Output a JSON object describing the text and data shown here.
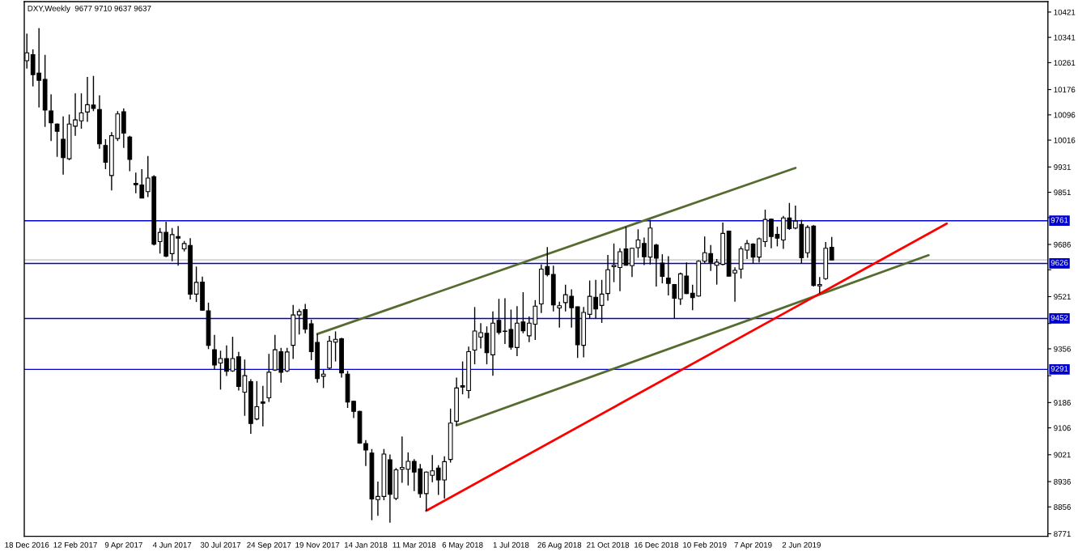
{
  "chart_data": {
    "type": "candlestick",
    "title": "DXY,Weekly  9677 9710 9637 9637",
    "x": [
      "2016-12-18",
      "2016-12-25",
      "2017-01-01",
      "2017-01-08",
      "2017-01-15",
      "2017-01-22",
      "2017-01-29",
      "2017-02-05",
      "2017-02-12",
      "2017-02-19",
      "2017-02-26",
      "2017-03-05",
      "2017-03-12",
      "2017-03-19",
      "2017-03-26",
      "2017-04-02",
      "2017-04-09",
      "2017-04-16",
      "2017-04-23",
      "2017-04-30",
      "2017-05-07",
      "2017-05-14",
      "2017-05-21",
      "2017-05-28",
      "2017-06-04",
      "2017-06-11",
      "2017-06-18",
      "2017-06-25",
      "2017-07-02",
      "2017-07-09",
      "2017-07-16",
      "2017-07-23",
      "2017-07-30",
      "2017-08-06",
      "2017-08-13",
      "2017-08-20",
      "2017-08-27",
      "2017-09-03",
      "2017-09-10",
      "2017-09-17",
      "2017-09-24",
      "2017-10-01",
      "2017-10-08",
      "2017-10-15",
      "2017-10-22",
      "2017-10-29",
      "2017-11-05",
      "2017-11-12",
      "2017-11-19",
      "2017-11-26",
      "2017-12-03",
      "2017-12-10",
      "2017-12-17",
      "2017-12-24",
      "2017-12-31",
      "2018-01-07",
      "2018-01-14",
      "2018-01-21",
      "2018-01-28",
      "2018-02-04",
      "2018-02-11",
      "2018-02-18",
      "2018-02-25",
      "2018-03-04",
      "2018-03-11",
      "2018-03-18",
      "2018-03-25",
      "2018-04-01",
      "2018-04-08",
      "2018-04-15",
      "2018-04-22",
      "2018-04-29",
      "2018-05-06",
      "2018-05-13",
      "2018-05-20",
      "2018-05-27",
      "2018-06-03",
      "2018-06-10",
      "2018-06-17",
      "2018-06-24",
      "2018-07-01",
      "2018-07-08",
      "2018-07-15",
      "2018-07-22",
      "2018-07-29",
      "2018-08-05",
      "2018-08-12",
      "2018-08-19",
      "2018-08-26",
      "2018-09-02",
      "2018-09-09",
      "2018-09-16",
      "2018-09-23",
      "2018-09-30",
      "2018-10-07",
      "2018-10-14",
      "2018-10-21",
      "2018-10-28",
      "2018-11-04",
      "2018-11-11",
      "2018-11-18",
      "2018-11-25",
      "2018-12-02",
      "2018-12-09",
      "2018-12-16",
      "2018-12-23",
      "2018-12-30",
      "2019-01-06",
      "2019-01-13",
      "2019-01-20",
      "2019-01-27",
      "2019-02-03",
      "2019-02-10",
      "2019-02-17",
      "2019-02-24",
      "2019-03-03",
      "2019-03-10",
      "2019-03-17",
      "2019-03-24",
      "2019-03-31",
      "2019-04-07",
      "2019-04-14",
      "2019-04-21",
      "2019-04-28",
      "2019-05-05",
      "2019-05-12",
      "2019-05-19",
      "2019-05-26",
      "2019-06-02",
      "2019-06-09",
      "2019-06-16",
      "2019-06-23",
      "2019-06-30",
      "2019-07-07"
    ],
    "ohlc": [
      [
        10267,
        10353,
        10242,
        10292
      ],
      [
        10286,
        10303,
        10186,
        10223
      ],
      [
        10228,
        10370,
        10119,
        10205
      ],
      [
        10208,
        10286,
        10058,
        10111
      ],
      [
        10108,
        10161,
        10013,
        10071
      ],
      [
        10067,
        10069,
        9963,
        10044
      ],
      [
        10019,
        10091,
        9907,
        9961
      ],
      [
        9957,
        10097,
        9952,
        10067
      ],
      [
        10060,
        10164,
        10030,
        10080
      ],
      [
        10077,
        10164,
        10052,
        10102
      ],
      [
        10105,
        10216,
        10074,
        10128
      ],
      [
        10127,
        10219,
        10108,
        10116
      ],
      [
        10113,
        10158,
        9989,
        10004
      ],
      [
        9999,
        10019,
        9924,
        9946
      ],
      [
        9904,
        10041,
        9857,
        10030
      ],
      [
        10021,
        10108,
        10013,
        10099
      ],
      [
        10106,
        10116,
        9991,
        10038
      ],
      [
        10026,
        10030,
        9918,
        9955
      ],
      [
        9879,
        9913,
        9848,
        9875
      ],
      [
        9874,
        9924,
        9833,
        9833
      ],
      [
        9853,
        9966,
        9836,
        9896
      ],
      [
        9900,
        9905,
        9683,
        9687
      ],
      [
        9695,
        9738,
        9657,
        9724
      ],
      [
        9724,
        9758,
        9646,
        9649
      ],
      [
        9657,
        9738,
        9633,
        9717
      ],
      [
        9711,
        9744,
        9619,
        9706
      ],
      [
        9672,
        9697,
        9664,
        9689
      ],
      [
        9683,
        9706,
        9512,
        9529
      ],
      [
        9529,
        9616,
        9504,
        9566
      ],
      [
        9567,
        9584,
        9476,
        9478
      ],
      [
        9476,
        9502,
        9355,
        9367
      ],
      [
        9353,
        9400,
        9289,
        9305
      ],
      [
        9311,
        9350,
        9227,
        9325
      ],
      [
        9325,
        9367,
        9270,
        9285
      ],
      [
        9286,
        9394,
        9283,
        9325
      ],
      [
        9331,
        9346,
        9224,
        9237
      ],
      [
        9219,
        9322,
        9144,
        9271
      ],
      [
        9252,
        9260,
        9087,
        9120
      ],
      [
        9134,
        9254,
        9130,
        9173
      ],
      [
        9188,
        9239,
        9111,
        9184
      ],
      [
        9201,
        9340,
        9188,
        9282
      ],
      [
        9289,
        9400,
        9286,
        9353
      ],
      [
        9347,
        9359,
        9249,
        9282
      ],
      [
        9286,
        9359,
        9282,
        9346
      ],
      [
        9367,
        9495,
        9324,
        9463
      ],
      [
        9463,
        9482,
        9401,
        9474
      ],
      [
        9480,
        9498,
        9405,
        9418
      ],
      [
        9435,
        9448,
        9320,
        9347
      ],
      [
        9376,
        9403,
        9249,
        9262
      ],
      [
        9269,
        9290,
        9232,
        9276
      ],
      [
        9295,
        9397,
        9289,
        9380
      ],
      [
        9377,
        9411,
        9316,
        9386
      ],
      [
        9388,
        9391,
        9265,
        9280
      ],
      [
        9276,
        9286,
        9169,
        9188
      ],
      [
        9190,
        9192,
        9137,
        9158
      ],
      [
        9158,
        9160,
        9056,
        9058
      ],
      [
        9056,
        9067,
        8985,
        9036
      ],
      [
        9026,
        9039,
        8814,
        8881
      ],
      [
        8879,
        8936,
        8828,
        8889
      ],
      [
        8889,
        9039,
        8877,
        9023
      ],
      [
        9005,
        9022,
        8806,
        8896
      ],
      [
        8883,
        8979,
        8877,
        8973
      ],
      [
        8975,
        9079,
        8932,
        8981
      ],
      [
        8975,
        9028,
        8924,
        9000
      ],
      [
        9000,
        9007,
        8906,
        8966
      ],
      [
        8976,
        8992,
        8885,
        8898
      ],
      [
        8898,
        8968,
        8844,
        8966
      ],
      [
        8956,
        9020,
        8934,
        8970
      ],
      [
        8979,
        8988,
        8894,
        8941
      ],
      [
        8941,
        9016,
        8882,
        8999
      ],
      [
        9006,
        9167,
        8996,
        9121
      ],
      [
        9127,
        9265,
        9114,
        9232
      ],
      [
        9239,
        9316,
        9212,
        9235
      ],
      [
        9224,
        9363,
        9199,
        9347
      ],
      [
        9352,
        9488,
        9307,
        9412
      ],
      [
        9393,
        9437,
        9357,
        9407
      ],
      [
        9405,
        9427,
        9307,
        9344
      ],
      [
        9337,
        9474,
        9271,
        9437
      ],
      [
        9446,
        9514,
        9401,
        9408
      ],
      [
        9412,
        9516,
        9371,
        9411
      ],
      [
        9417,
        9480,
        9353,
        9361
      ],
      [
        9360,
        9491,
        9333,
        9437
      ],
      [
        9441,
        9535,
        9405,
        9413
      ],
      [
        9397,
        9458,
        9377,
        9437
      ],
      [
        9434,
        9510,
        9384,
        9491
      ],
      [
        9498,
        9623,
        9469,
        9608
      ],
      [
        9616,
        9678,
        9585,
        9591
      ],
      [
        9591,
        9619,
        9474,
        9495
      ],
      [
        9485,
        9505,
        9423,
        9492
      ],
      [
        9502,
        9559,
        9474,
        9527
      ],
      [
        9522,
        9544,
        9423,
        9486
      ],
      [
        9489,
        9490,
        9327,
        9369
      ],
      [
        9367,
        9488,
        9329,
        9471
      ],
      [
        9465,
        9572,
        9452,
        9522
      ],
      [
        9519,
        9574,
        9452,
        9482
      ],
      [
        9493,
        9574,
        9438,
        9529
      ],
      [
        9531,
        9653,
        9508,
        9606
      ],
      [
        9616,
        9689,
        9567,
        9620
      ],
      [
        9613,
        9674,
        9538,
        9663
      ],
      [
        9672,
        9742,
        9619,
        9620
      ],
      [
        9619,
        9676,
        9583,
        9674
      ],
      [
        9676,
        9734,
        9644,
        9700
      ],
      [
        9689,
        9708,
        9621,
        9647
      ],
      [
        9646,
        9764,
        9623,
        9738
      ],
      [
        9684,
        9688,
        9553,
        9643
      ],
      [
        9627,
        9655,
        9563,
        9585
      ],
      [
        9580,
        9649,
        9525,
        9563
      ],
      [
        9559,
        9561,
        9452,
        9516
      ],
      [
        9514,
        9597,
        9495,
        9593
      ],
      [
        9586,
        9629,
        9529,
        9531
      ],
      [
        9532,
        9559,
        9478,
        9518
      ],
      [
        9523,
        9636,
        9521,
        9633
      ],
      [
        9633,
        9711,
        9627,
        9660
      ],
      [
        9657,
        9684,
        9602,
        9629
      ],
      [
        9620,
        9640,
        9559,
        9630
      ],
      [
        9623,
        9755,
        9620,
        9721
      ],
      [
        9728,
        9730,
        9585,
        9586
      ],
      [
        9596,
        9614,
        9505,
        9604
      ],
      [
        9608,
        9680,
        9578,
        9672
      ],
      [
        9668,
        9700,
        9640,
        9689
      ],
      [
        9687,
        9690,
        9626,
        9646
      ],
      [
        9646,
        9708,
        9629,
        9704
      ],
      [
        9695,
        9796,
        9678,
        9765
      ],
      [
        9766,
        9768,
        9674,
        9711
      ],
      [
        9718,
        9742,
        9680,
        9706
      ],
      [
        9700,
        9776,
        9672,
        9770
      ],
      [
        9770,
        9817,
        9732,
        9736
      ],
      [
        9738,
        9809,
        9734,
        9760
      ],
      [
        9749,
        9764,
        9627,
        9644
      ],
      [
        9660,
        9747,
        9644,
        9740
      ],
      [
        9744,
        9747,
        9553,
        9556
      ],
      [
        9555,
        9583,
        9531,
        9559
      ],
      [
        9578,
        9694,
        9574,
        9674
      ],
      [
        9677,
        9710,
        9637,
        9637
      ]
    ],
    "series": [
      {
        "type": "line",
        "x": [
          "2017-11-19",
          "2019-05-26"
        ],
        "values": [
          9403,
          9928
        ],
        "color": "#556b2f"
      },
      {
        "type": "line",
        "x": [
          "2018-04-29",
          "2019-10-27"
        ],
        "values": [
          9114,
          9652
        ],
        "color": "#556b2f"
      },
      {
        "type": "line",
        "x": [
          "2018-03-25",
          "2019-11-17"
        ],
        "values": [
          8844,
          9752
        ],
        "color": "#ff0000"
      }
    ],
    "ref_lines": [
      {
        "axis": "y",
        "value": 9761,
        "label": "9761",
        "color": "#0000cd"
      },
      {
        "axis": "y",
        "value": 9626,
        "label": "9626",
        "color": "#0000cd"
      },
      {
        "axis": "y",
        "value": 9452,
        "label": "9452",
        "color": "#0000cd"
      },
      {
        "axis": "y",
        "value": 9291,
        "label": "9291",
        "color": "#0000cd"
      },
      {
        "axis": "y",
        "value": 9637,
        "color": "#c0c0c0"
      }
    ],
    "xlim": [
      "2016-12-15",
      "2020-03-13"
    ],
    "xticks": [
      {
        "value": "2016-12-18",
        "label": "18 Dec 2016"
      },
      {
        "value": "2017-02-12",
        "label": "12 Feb 2017"
      },
      {
        "value": "2017-04-09",
        "label": "9 Apr 2017"
      },
      {
        "value": "2017-06-04",
        "label": "4 Jun 2017"
      },
      {
        "value": "2017-07-30",
        "label": "30 Jul 2017"
      },
      {
        "value": "2017-09-24",
        "label": "24 Sep 2017"
      },
      {
        "value": "2017-11-19",
        "label": "19 Nov 2017"
      },
      {
        "value": "2018-01-14",
        "label": "14 Jan 2018"
      },
      {
        "value": "2018-03-11",
        "label": "11 Mar 2018"
      },
      {
        "value": "2018-05-06",
        "label": "6 May 2018"
      },
      {
        "value": "2018-07-01",
        "label": "1 Jul 2018"
      },
      {
        "value": "2018-08-26",
        "label": "26 Aug 2018"
      },
      {
        "value": "2018-10-21",
        "label": "21 Oct 2018"
      },
      {
        "value": "2018-12-16",
        "label": "16 Dec 2018"
      },
      {
        "value": "2019-02-10",
        "label": "10 Feb 2019"
      },
      {
        "value": "2019-04-07",
        "label": "7 Apr 2019"
      },
      {
        "value": "2019-06-02",
        "label": "2 Jun 2019"
      }
    ],
    "ylim": [
      8763,
      10454
    ],
    "yticks": [
      10421,
      10341,
      10261,
      10176,
      10096,
      10016,
      9931,
      9851,
      {
        "value": 9771,
        "label": null
      },
      9686,
      {
        "value": 9606,
        "label": null
      },
      9521,
      {
        "value": 9436,
        "label": null
      },
      9356,
      {
        "value": 9271,
        "label": null
      },
      9186,
      9106,
      9021,
      8936,
      8856,
      8771
    ]
  }
}
